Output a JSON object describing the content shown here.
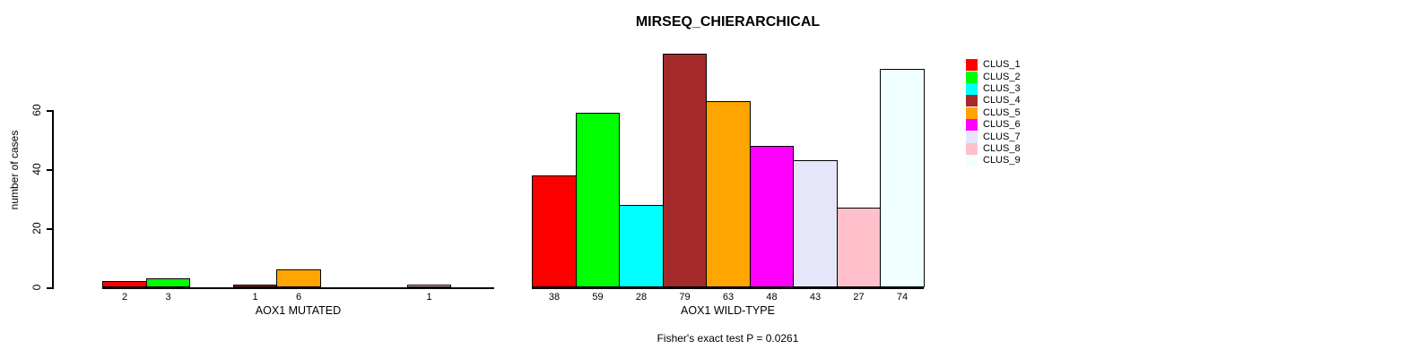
{
  "figure": {
    "title": "MIRSEQ_CHIERARCHICAL",
    "ylabel": "number of cases",
    "annotation": "Fisher's exact test P = 0.0261"
  },
  "chart_data": {
    "type": "bar",
    "title": "MIRSEQ_CHIERARCHICAL",
    "ylabel": "number of cases",
    "yticks": [
      0,
      20,
      40,
      60
    ],
    "ylim": [
      0,
      79
    ],
    "grid": false,
    "legend_position": "right-outside",
    "clusters": [
      {
        "name": "CLUS_1",
        "color": "#FF0000"
      },
      {
        "name": "CLUS_2",
        "color": "#00FF00"
      },
      {
        "name": "CLUS_3",
        "color": "#00FFFF"
      },
      {
        "name": "CLUS_4",
        "color": "#A52A2A"
      },
      {
        "name": "CLUS_5",
        "color": "#FFA500"
      },
      {
        "name": "CLUS_6",
        "color": "#FF00FF"
      },
      {
        "name": "CLUS_7",
        "color": "#E6E6FA"
      },
      {
        "name": "CLUS_8",
        "color": "#FFC0CB"
      },
      {
        "name": "CLUS_9",
        "color": "#F0FFFF"
      }
    ],
    "groups": [
      {
        "label": "AOX1 MUTATED",
        "values": [
          2,
          3,
          0,
          1,
          6,
          0,
          0,
          1,
          0
        ]
      },
      {
        "label": "AOX1 WILD-TYPE",
        "values": [
          38,
          59,
          28,
          79,
          63,
          48,
          43,
          27,
          74
        ]
      }
    ],
    "annotation": "Fisher's exact test P = 0.0261"
  }
}
